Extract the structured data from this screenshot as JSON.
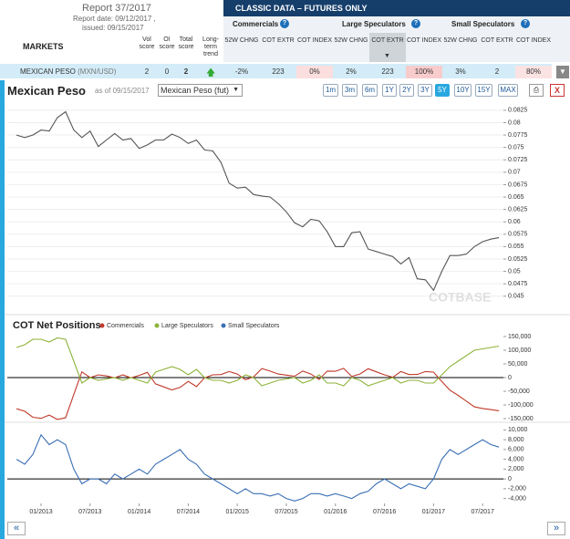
{
  "header": {
    "report": "Report 37/2017",
    "report_date": "Report date: 09/12/2017 ,",
    "issued": "issued: 09/15/2017",
    "markets": "MARKETS",
    "score_cols": [
      "Vol score",
      "OI score",
      "Total score",
      "Long-term trend"
    ],
    "banner": "CLASSIC DATA – FUTURES ONLY",
    "groups": [
      "Commercials",
      "Large Speculators",
      "Small Speculators"
    ],
    "help": "?",
    "sub_cols": [
      "52W CHNG",
      "COT EXTR",
      "COT INDEX"
    ]
  },
  "row": {
    "market": "MEXICAN PESO",
    "symbol": "(MXN/USD)",
    "scores": [
      2,
      0,
      2
    ],
    "cells": [
      "-2%",
      "223",
      "0%",
      "2%",
      "223",
      "100%",
      "3%",
      "2",
      "80%"
    ]
  },
  "toolbar": {
    "select": "Mexican Peso (fut)",
    "ranges": [
      "1m",
      "3m",
      "6m",
      "1Y",
      "2Y",
      "3Y",
      "5Y",
      "10Y",
      "15Y",
      "MAX"
    ],
    "active": 6
  },
  "nav": {
    "prev": "«",
    "next": "»"
  },
  "chart_data": [
    {
      "type": "line",
      "title": "Mexican Peso",
      "subtitle": "as of 09/15/2017",
      "grid": true,
      "x": [
        "10/2012",
        "11/2012",
        "12/2012",
        "01/2013",
        "02/2013",
        "03/2013",
        "04/2013",
        "05/2013",
        "06/2013",
        "07/2013",
        "08/2013",
        "09/2013",
        "10/2013",
        "11/2013",
        "12/2013",
        "01/2014",
        "02/2014",
        "03/2014",
        "04/2014",
        "05/2014",
        "06/2014",
        "07/2014",
        "08/2014",
        "09/2014",
        "10/2014",
        "11/2014",
        "12/2014",
        "01/2015",
        "02/2015",
        "03/2015",
        "04/2015",
        "05/2015",
        "06/2015",
        "07/2015",
        "08/2015",
        "09/2015",
        "10/2015",
        "11/2015",
        "12/2015",
        "01/2016",
        "02/2016",
        "03/2016",
        "04/2016",
        "05/2016",
        "06/2016",
        "07/2016",
        "08/2016",
        "09/2016",
        "10/2016",
        "11/2016",
        "12/2016",
        "01/2017",
        "02/2017",
        "03/2017",
        "04/2017",
        "05/2017",
        "06/2017",
        "07/2017",
        "08/2017",
        "09/2017"
      ],
      "series": [
        {
          "color": "#555555",
          "values": [
            0.0775,
            0.077,
            0.0775,
            0.0785,
            0.0783,
            0.081,
            0.0822,
            0.0785,
            0.077,
            0.0783,
            0.0752,
            0.0765,
            0.0778,
            0.0765,
            0.0768,
            0.0748,
            0.0755,
            0.0765,
            0.0765,
            0.0777,
            0.077,
            0.0758,
            0.0765,
            0.0745,
            0.0743,
            0.072,
            0.0678,
            0.0668,
            0.067,
            0.0655,
            0.0652,
            0.065,
            0.0637,
            0.062,
            0.0598,
            0.059,
            0.0605,
            0.0602,
            0.058,
            0.055,
            0.055,
            0.0578,
            0.058,
            0.0545,
            0.054,
            0.0535,
            0.053,
            0.0515,
            0.0528,
            0.0485,
            0.0483,
            0.0462,
            0.05,
            0.0532,
            0.0532,
            0.0535,
            0.055,
            0.056,
            0.0565,
            0.0568
          ]
        }
      ],
      "ylim": [
        0.0422,
        0.0845
      ],
      "yticks": [
        0.0825,
        0.08,
        0.0775,
        0.075,
        0.0725,
        0.07,
        0.0675,
        0.065,
        0.0625,
        0.06,
        0.0575,
        0.055,
        0.0525,
        0.05,
        0.0475,
        0.045
      ]
    },
    {
      "type": "line",
      "title": "COT Net Positions",
      "zero_line": true,
      "x": [
        "10/2012",
        "11/2012",
        "12/2012",
        "01/2013",
        "02/2013",
        "03/2013",
        "04/2013",
        "05/2013",
        "06/2013",
        "07/2013",
        "08/2013",
        "09/2013",
        "10/2013",
        "11/2013",
        "12/2013",
        "01/2014",
        "02/2014",
        "03/2014",
        "04/2014",
        "05/2014",
        "06/2014",
        "07/2014",
        "08/2014",
        "09/2014",
        "10/2014",
        "11/2014",
        "12/2014",
        "01/2015",
        "02/2015",
        "03/2015",
        "04/2015",
        "05/2015",
        "06/2015",
        "07/2015",
        "08/2015",
        "09/2015",
        "10/2015",
        "11/2015",
        "12/2015",
        "01/2016",
        "02/2016",
        "03/2016",
        "04/2016",
        "05/2016",
        "06/2016",
        "07/2016",
        "08/2016",
        "09/2016",
        "10/2016",
        "11/2016",
        "12/2016",
        "01/2017",
        "02/2017",
        "03/2017",
        "04/2017",
        "05/2017",
        "06/2017",
        "07/2017",
        "08/2017",
        "09/2017"
      ],
      "series": [
        {
          "name": "Commercials",
          "color": "#c0392b",
          "values": [
            -114000,
            -123000,
            -145000,
            -149000,
            -137000,
            -153000,
            -147000,
            -62000,
            21000,
            0,
            10000,
            6000,
            -1000,
            10000,
            -1000,
            8000,
            19000,
            -23000,
            -34000,
            -45000,
            -36000,
            -14000,
            -33000,
            -1000,
            10000,
            11000,
            22000,
            13000,
            -8000,
            3000,
            33000,
            23500,
            13000,
            9000,
            4500,
            24000,
            13000,
            -7000,
            23500,
            23000,
            33500,
            4000,
            13000,
            32500,
            21000,
            10000,
            1000,
            22000,
            11000,
            11500,
            22000,
            20000,
            -14000,
            -46000,
            -65000,
            -86000,
            -107000,
            -113000,
            -117000,
            -121500
          ]
        },
        {
          "name": "Large Speculators",
          "color": "#8db33a",
          "values": [
            110000,
            120000,
            140000,
            140000,
            130000,
            145000,
            140000,
            60000,
            -20000,
            0,
            -10000,
            -5000,
            0,
            -10000,
            0,
            -10000,
            -20000,
            20000,
            30000,
            40000,
            30000,
            10000,
            30000,
            0,
            -10000,
            -10000,
            -20000,
            -10000,
            10000,
            0,
            -30000,
            -20000,
            -10000,
            -5000,
            0,
            -20000,
            -10000,
            10000,
            -20000,
            -20000,
            -30000,
            0,
            -10000,
            -30000,
            -20000,
            -10000,
            0,
            -20000,
            -10000,
            -10000,
            -20000,
            -20000,
            10000,
            40000,
            60000,
            80000,
            100000,
            105000,
            110000,
            115000
          ]
        }
      ],
      "ylim": [
        -150000,
        150000
      ],
      "yticks": [
        {
          "value": 150000,
          "label": "150,000"
        },
        {
          "value": 100000,
          "label": "100,000"
        },
        {
          "value": 50000,
          "label": "50,000"
        },
        0,
        {
          "value": -50000,
          "label": "-50,000"
        },
        {
          "value": -100000,
          "label": "-100,000"
        },
        {
          "value": -150000,
          "label": "-150,000"
        }
      ]
    },
    {
      "type": "line",
      "zero_line": true,
      "x": [
        "10/2012",
        "11/2012",
        "12/2012",
        "01/2013",
        "02/2013",
        "03/2013",
        "04/2013",
        "05/2013",
        "06/2013",
        "07/2013",
        "08/2013",
        "09/2013",
        "10/2013",
        "11/2013",
        "12/2013",
        "01/2014",
        "02/2014",
        "03/2014",
        "04/2014",
        "05/2014",
        "06/2014",
        "07/2014",
        "08/2014",
        "09/2014",
        "10/2014",
        "11/2014",
        "12/2014",
        "01/2015",
        "02/2015",
        "03/2015",
        "04/2015",
        "05/2015",
        "06/2015",
        "07/2015",
        "08/2015",
        "09/2015",
        "10/2015",
        "11/2015",
        "12/2015",
        "01/2016",
        "02/2016",
        "03/2016",
        "04/2016",
        "05/2016",
        "06/2016",
        "07/2016",
        "08/2016",
        "09/2016",
        "10/2016",
        "11/2016",
        "12/2016",
        "01/2017",
        "02/2017",
        "03/2017",
        "04/2017",
        "05/2017",
        "06/2017",
        "07/2017",
        "08/2017",
        "09/2017"
      ],
      "series": [
        {
          "name": "Small Speculators",
          "color": "#3a6fb5",
          "values": [
            4000,
            3000,
            5000,
            9000,
            7000,
            8000,
            7000,
            2000,
            -1000,
            0,
            0,
            -1000,
            1000,
            0,
            1000,
            2000,
            1000,
            3000,
            4000,
            5000,
            6000,
            4000,
            3000,
            1000,
            0,
            -1000,
            -2000,
            -3000,
            -2000,
            -3000,
            -3000,
            -3500,
            -3000,
            -4000,
            -4500,
            -4000,
            -3000,
            -3000,
            -3500,
            -3000,
            -3500,
            -4000,
            -3000,
            -2500,
            -1000,
            0,
            -1000,
            -2000,
            -1000,
            -1500,
            -2000,
            0,
            4000,
            6000,
            5000,
            6000,
            7000,
            8000,
            7000,
            6500
          ]
        }
      ],
      "ylim": [
        -5000,
        11000
      ],
      "yticks": [
        {
          "value": 10000,
          "label": "10,000"
        },
        {
          "value": 8000,
          "label": "8,000"
        },
        {
          "value": 6000,
          "label": "6,000"
        },
        {
          "value": 4000,
          "label": "4,000"
        },
        {
          "value": 2000,
          "label": "2,000"
        },
        0,
        {
          "value": -2000,
          "label": "-2,000"
        },
        {
          "value": -4000,
          "label": "-4,000"
        }
      ],
      "xticks": [
        "01/2013",
        "07/2013",
        "01/2014",
        "07/2014",
        "01/2015",
        "07/2015",
        "01/2016",
        "07/2016",
        "01/2017",
        "07/2017"
      ]
    }
  ]
}
